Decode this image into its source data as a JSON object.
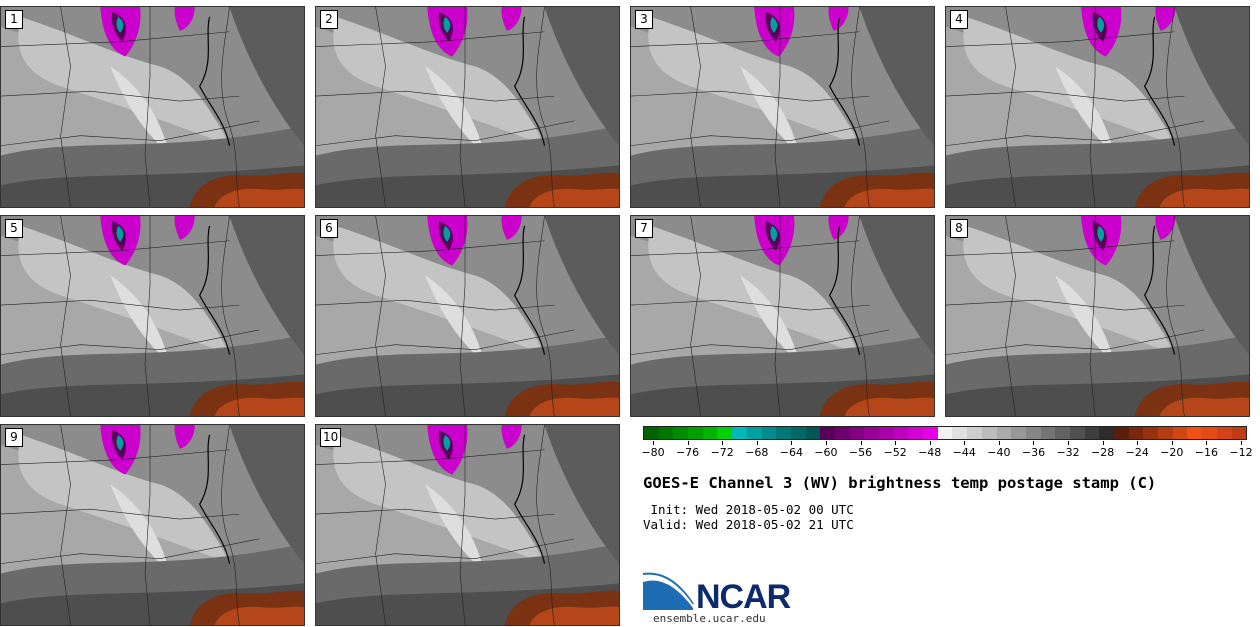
{
  "title": "GOES-E Channel 3 (WV) brightness temp postage stamp (C)",
  "init": "Init: Wed 2018-05-02 00 UTC",
  "valid": "Valid: Wed 2018-05-02 21 UTC",
  "logo": "NCAR",
  "url": "ensemble.ucar.edu",
  "panels": [
    {
      "label": "1"
    },
    {
      "label": "2"
    },
    {
      "label": "3"
    },
    {
      "label": "4"
    },
    {
      "label": "5"
    },
    {
      "label": "6"
    },
    {
      "label": "7"
    },
    {
      "label": "8"
    },
    {
      "label": "9"
    },
    {
      "label": "10"
    }
  ],
  "colorbar": {
    "ticks": [
      "−80",
      "−76",
      "−72",
      "−68",
      "−64",
      "−60",
      "−56",
      "−52",
      "−48",
      "−44",
      "−40",
      "−36",
      "−32",
      "−28",
      "−24",
      "−20",
      "−16",
      "−12"
    ],
    "colors": [
      "#006400",
      "#007800",
      "#008c00",
      "#00a000",
      "#00b400",
      "#00d200",
      "#00b8b8",
      "#00a0a0",
      "#008c8c",
      "#007878",
      "#006666",
      "#005555",
      "#5a005a",
      "#6e006e",
      "#820082",
      "#960096",
      "#aa00aa",
      "#be00be",
      "#d200d2",
      "#e600e6",
      "#f2f2f2",
      "#e0e0e0",
      "#cecece",
      "#bcbcbc",
      "#aaaaaa",
      "#989898",
      "#868686",
      "#747474",
      "#626262",
      "#505050",
      "#3e3e3e",
      "#2c2c2c",
      "#5a1e0a",
      "#78280c",
      "#96320e",
      "#b43c10",
      "#d24612",
      "#f05014",
      "#e64a14",
      "#d4421a",
      "#c03c16"
    ]
  }
}
